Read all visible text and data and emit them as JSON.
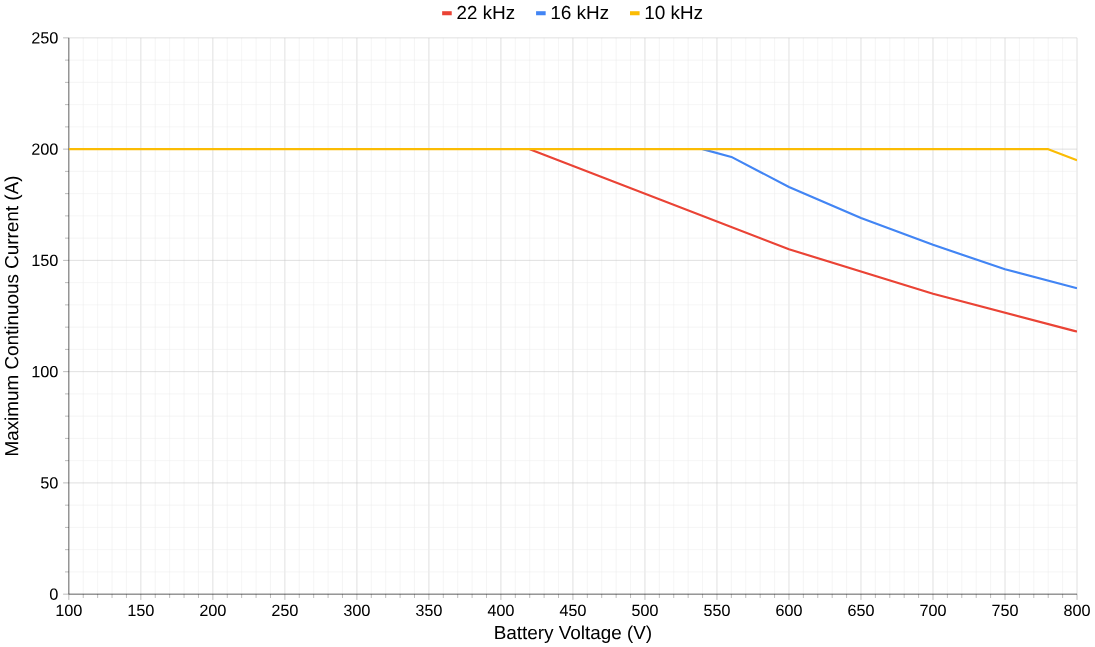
{
  "chart_data": {
    "type": "line",
    "xlabel": "Battery Voltage (V)",
    "ylabel": "Maximum Continuous Current (A)",
    "xlim": [
      100,
      800
    ],
    "ylim": [
      0,
      250
    ],
    "xticks": [
      100,
      150,
      200,
      250,
      300,
      350,
      400,
      450,
      500,
      550,
      600,
      650,
      700,
      750,
      800
    ],
    "yticks": [
      0,
      50,
      100,
      150,
      200,
      250
    ],
    "grid": true,
    "legend": "top",
    "marker": "none",
    "series": [
      {
        "name": "22 kHz",
        "color": "#ea4335",
        "x": [
          420,
          600,
          700,
          800
        ],
        "values": [
          200,
          155,
          135,
          118
        ]
      },
      {
        "name": "16 kHz",
        "color": "#4285f4",
        "x": [
          540,
          560,
          600,
          650,
          700,
          750,
          800
        ],
        "values": [
          200,
          196.5,
          183,
          169,
          157,
          146,
          137.5
        ]
      },
      {
        "name": "10 kHz",
        "color": "#fbbc04",
        "x": [
          100,
          780,
          800
        ],
        "values": [
          200,
          200,
          195
        ]
      }
    ]
  }
}
